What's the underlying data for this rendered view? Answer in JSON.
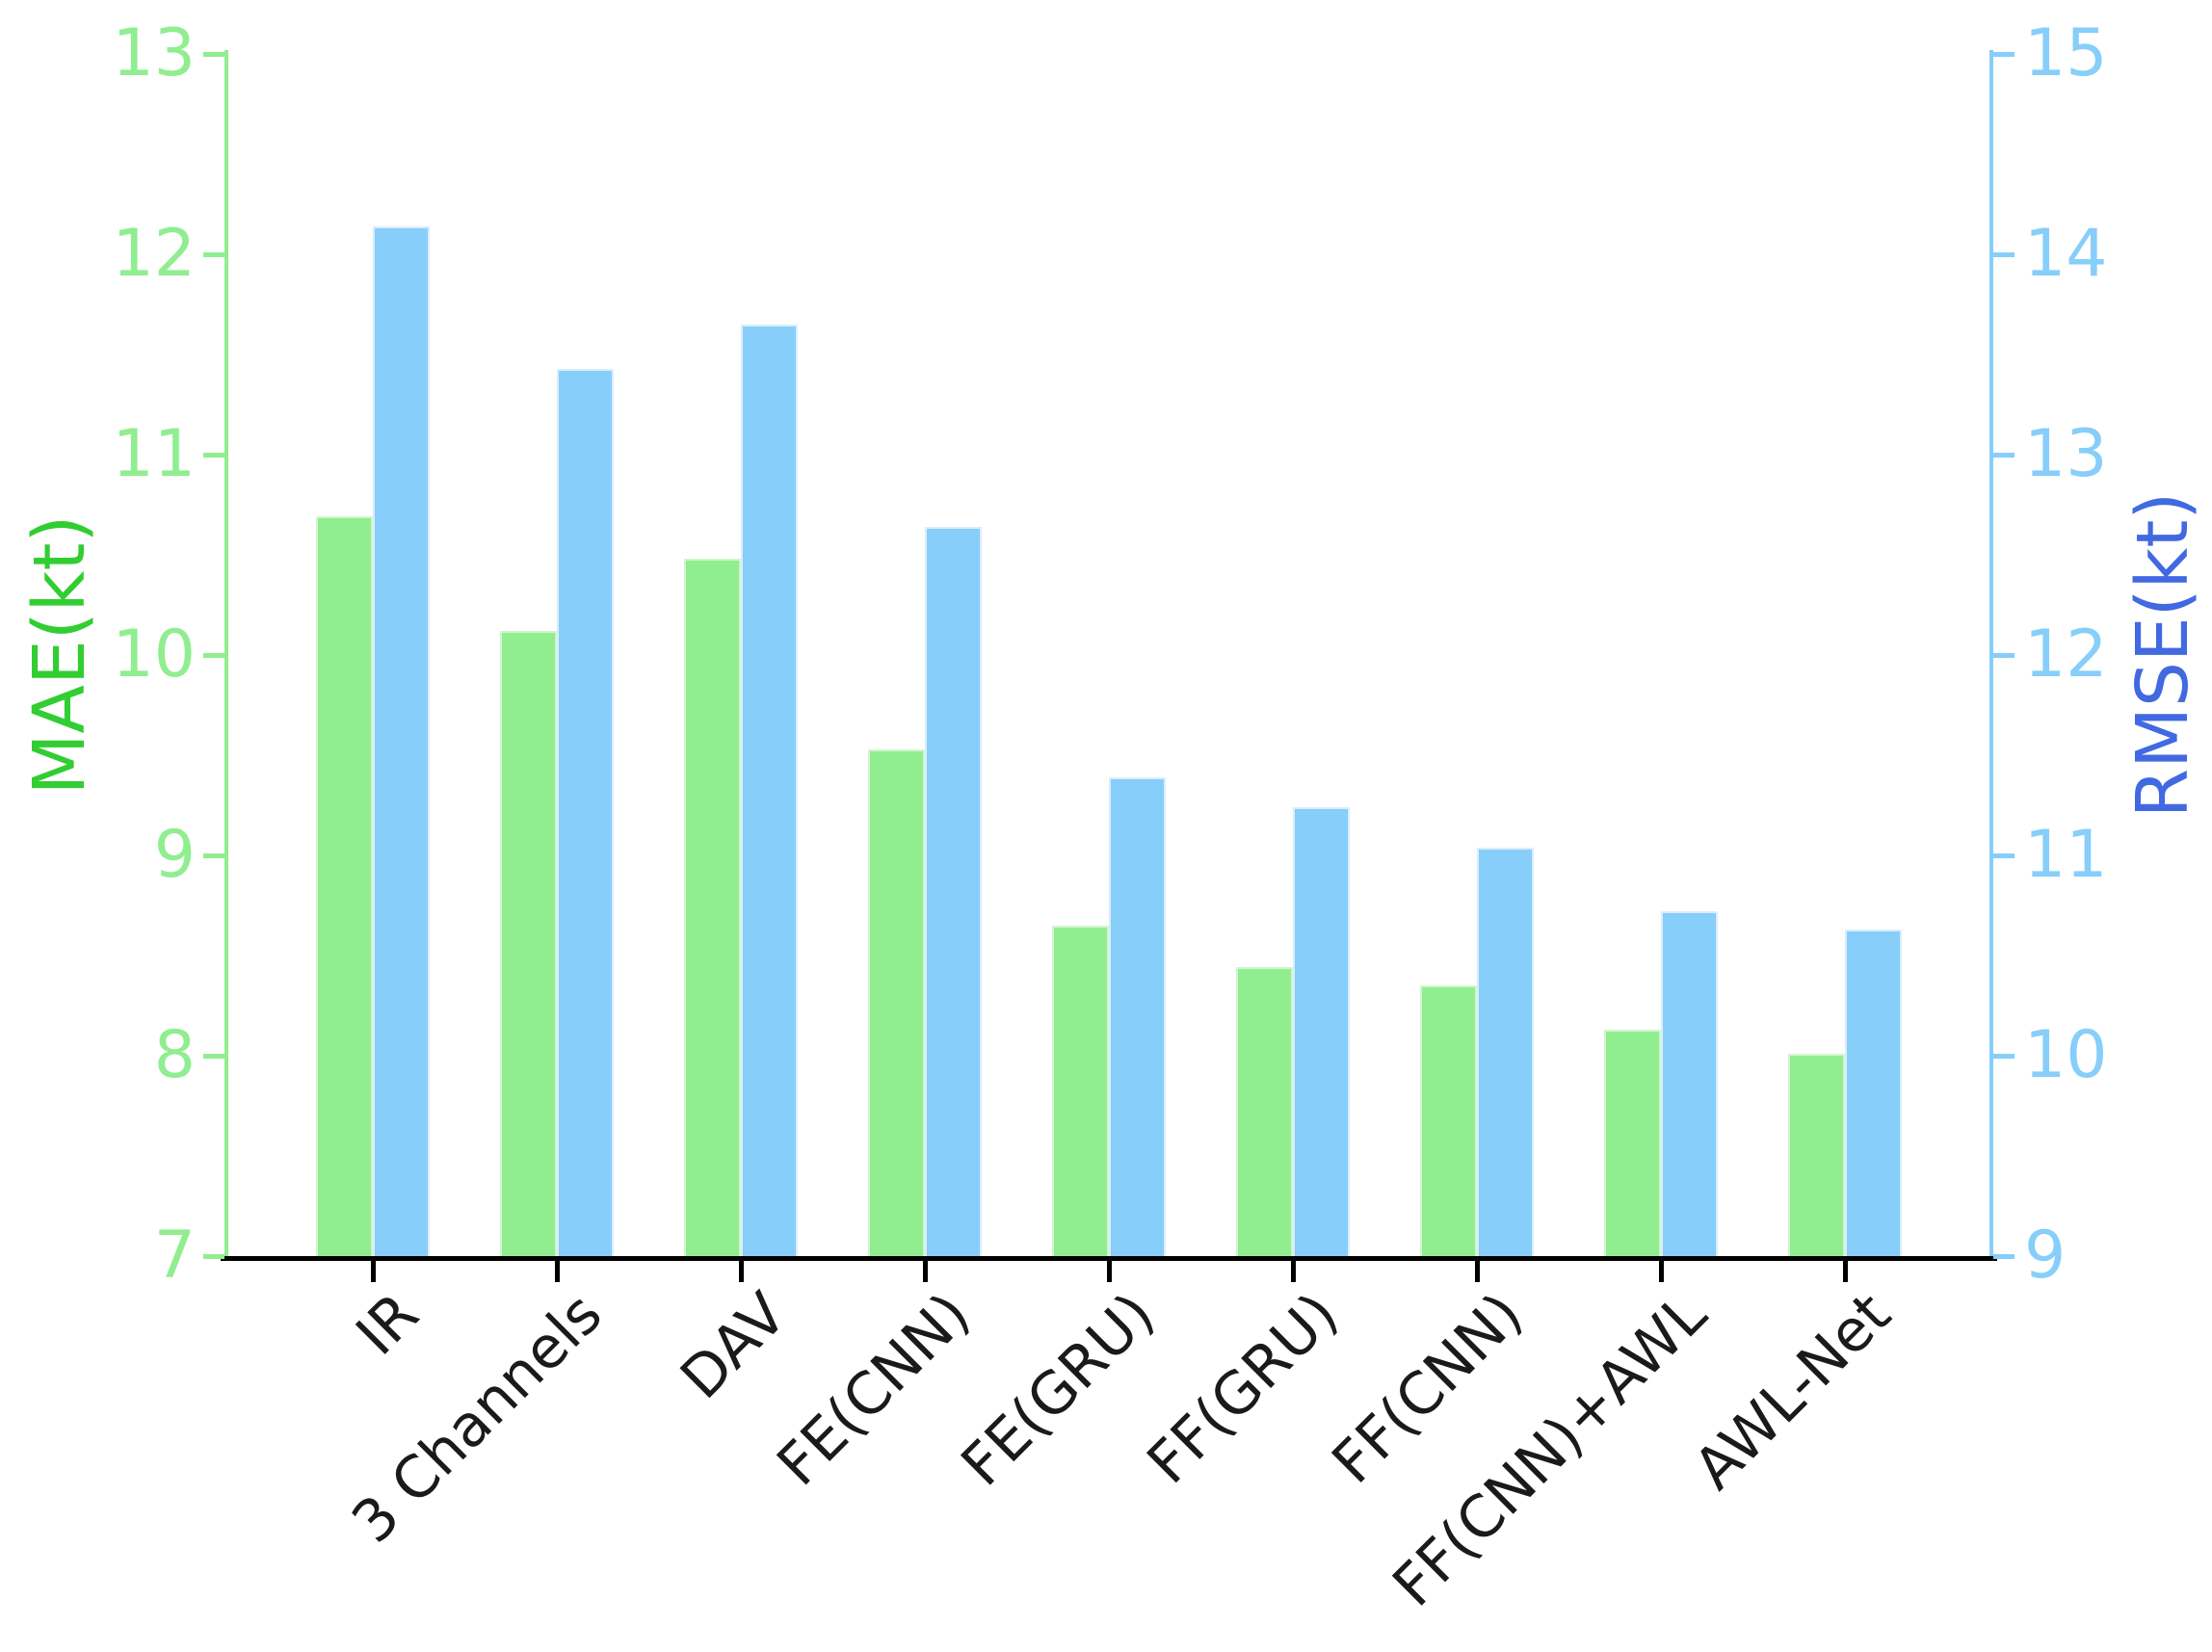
{
  "figure": {
    "background": "#ffffff"
  },
  "chart_data": {
    "type": "bar",
    "categories": [
      "IR",
      "3 Channels",
      "DAV",
      "FE(CNN)",
      "FE(GRU)",
      "FF(GRU)",
      "FF(CNN)",
      "FF(CNN)+AWL",
      "AWL-Net"
    ],
    "series": [
      {
        "name": "MAE",
        "axis": "left",
        "color": "#90EE90",
        "values": [
          10.69,
          10.12,
          10.48,
          9.53,
          8.65,
          8.44,
          8.35,
          8.13,
          8.01
        ]
      },
      {
        "name": "RMSE",
        "axis": "right",
        "color": "#87CEFA",
        "values": [
          14.14,
          13.43,
          13.65,
          12.64,
          11.39,
          11.24,
          11.04,
          10.72,
          10.63
        ]
      }
    ],
    "left_axis": {
      "label": "MAE(kt)",
      "min": 7,
      "max": 13,
      "ticks": [
        7,
        8,
        9,
        10,
        11,
        12,
        13
      ],
      "tick_color": "#90EE90",
      "label_color": "#32CD32"
    },
    "right_axis": {
      "label": "RMSE(kt)",
      "min": 9,
      "max": 15,
      "ticks": [
        9,
        10,
        11,
        12,
        13,
        14,
        15
      ],
      "tick_color": "#87CEFA",
      "label_color": "#4169E1"
    },
    "x_axis": {
      "tick_color": "#000000",
      "label_color": "#1a1a1a"
    },
    "grid": false,
    "legend": null
  }
}
